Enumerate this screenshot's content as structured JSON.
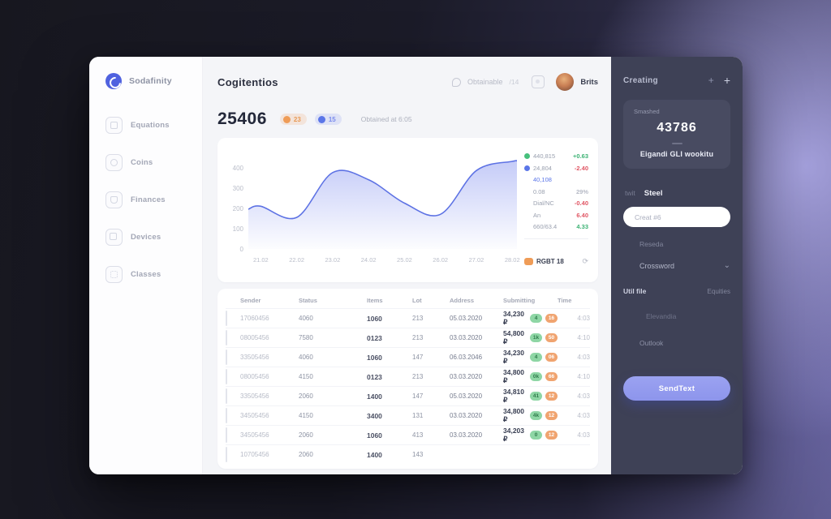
{
  "theme": {
    "accent": "#5d72e4",
    "green": "#3bb273",
    "red": "#e05563",
    "orange": "#ef9c57",
    "panel_bg": "#3e4156",
    "button": "#939bee"
  },
  "sidebar": {
    "brand": "Sodafinity",
    "items": [
      {
        "label": "Equations",
        "icon": "ico-grid"
      },
      {
        "label": "Coins",
        "icon": "ico-coin"
      },
      {
        "label": "Finances",
        "icon": "ico-wallet"
      },
      {
        "label": "Devices",
        "icon": "ico-copy"
      },
      {
        "label": "Classes",
        "icon": "ico-apps"
      }
    ]
  },
  "header": {
    "title": "Cogitentios",
    "search_placeholder": "Obtainable",
    "shortcut": "/14",
    "user_name": "Brits"
  },
  "stats": {
    "total": "25406",
    "orange_badge": "23",
    "blue_badge": "15",
    "caption": "Obtained at 6:05"
  },
  "chart_data": {
    "type": "area",
    "title": "",
    "xlabel": "",
    "ylabel": "",
    "x": [
      "21.02",
      "22.02",
      "23.02",
      "24.02",
      "25.02",
      "26.02",
      "27.02",
      "28.02"
    ],
    "values": [
      210,
      155,
      375,
      340,
      225,
      170,
      385,
      430
    ],
    "start_value": 195,
    "end_value": 432,
    "yticks": [
      400,
      300,
      200,
      100,
      0
    ],
    "ylim": [
      0,
      450
    ],
    "grid": false,
    "legend_position": "right",
    "line_color": "#5d72e4",
    "fill_from": "rgba(116,132,238,0.42)",
    "fill_to": "rgba(116,132,238,0.02)"
  },
  "legend": {
    "items": [
      {
        "dot": "#46c07c",
        "label": "440,815",
        "value": "+0.63",
        "value_color": "#3bb273"
      },
      {
        "dot": "#5b76e8",
        "label": "24,804",
        "value": "-2.40",
        "value_color": "#e05563"
      },
      {
        "dot": "transparent",
        "label": "40,108",
        "label_color": "#5b76e8",
        "value": ""
      },
      {
        "dot": "transparent",
        "label": "0.08",
        "value": "29%",
        "value_color": "#b6bac6"
      },
      {
        "dot": "transparent",
        "label": "Dial/NC",
        "value": "-0.40",
        "value_color": "#e05563"
      },
      {
        "dot": "transparent",
        "label": "An",
        "value": "6.40",
        "value_color": "#e05563"
      },
      {
        "dot": "transparent",
        "label": "660/63.4",
        "value": "4.33",
        "value_color": "#3bb273"
      }
    ],
    "footer_label": "RGBT 18",
    "refresh_icon": "⟳"
  },
  "table": {
    "headers": [
      "Sender",
      "Status",
      "Items",
      "Lot",
      "Address",
      "Submitting",
      "Time"
    ],
    "rows": [
      {
        "id": "17060456",
        "qty": "4060",
        "num": "1060",
        "lot": "213",
        "date": "05.03.2020",
        "amount": "34,230 ₽",
        "b1": "4",
        "b2": "16",
        "time": "4:03"
      },
      {
        "id": "08005456",
        "qty": "7580",
        "num": "0123",
        "lot": "213",
        "date": "03.03.2020",
        "amount": "54,800 ₽",
        "b1": "1k",
        "b2": "50",
        "time": "4:10"
      },
      {
        "id": "33505456",
        "qty": "4060",
        "num": "1060",
        "lot": "147",
        "date": "06.03.2046",
        "amount": "34,230 ₽",
        "b1": "4",
        "b2": "06",
        "time": "4:03"
      },
      {
        "id": "08005456",
        "qty": "4150",
        "num": "0123",
        "lot": "213",
        "date": "03.03.2020",
        "amount": "34,800 ₽",
        "b1": "0k",
        "b2": "66",
        "time": "4:10"
      },
      {
        "id": "33505456",
        "qty": "2060",
        "num": "1400",
        "lot": "147",
        "date": "05.03.2020",
        "amount": "34,810 ₽",
        "b1": "41",
        "b2": "12",
        "time": "4:03"
      },
      {
        "id": "34505456",
        "qty": "4150",
        "num": "3400",
        "lot": "131",
        "date": "03.03.2020",
        "amount": "34,800 ₽",
        "b1": "4k",
        "b2": "12",
        "time": "4:03"
      },
      {
        "id": "34505456",
        "qty": "2060",
        "num": "1060",
        "lot": "413",
        "date": "03.03.2020",
        "amount": "34,203 ₽",
        "b1": "0",
        "b2": "12",
        "time": "4:03"
      },
      {
        "id": "10705456",
        "qty": "2060",
        "num": "1400",
        "lot": "143",
        "date": "",
        "amount": "",
        "b1": "",
        "b2": "",
        "time": ""
      }
    ]
  },
  "panel": {
    "title": "Creating",
    "plus_icon": "+",
    "plus_icon_2": "+",
    "card": {
      "label": "Smashed",
      "number": "43786",
      "text": "Eigandi GLI wookitu"
    },
    "tabs": [
      {
        "label": "twit",
        "state": "inactive"
      },
      {
        "label": "Steel",
        "state": "active"
      }
    ],
    "input_placeholder": "Creat #6",
    "label_1": "Reseda",
    "dropdown_label": "Crossword",
    "dropdown_chevron": "⌄",
    "row_left": "Util file",
    "row_right": "Equities",
    "label_2": "Elevandia",
    "label_3": "Outlook",
    "button_label": "SendText"
  }
}
